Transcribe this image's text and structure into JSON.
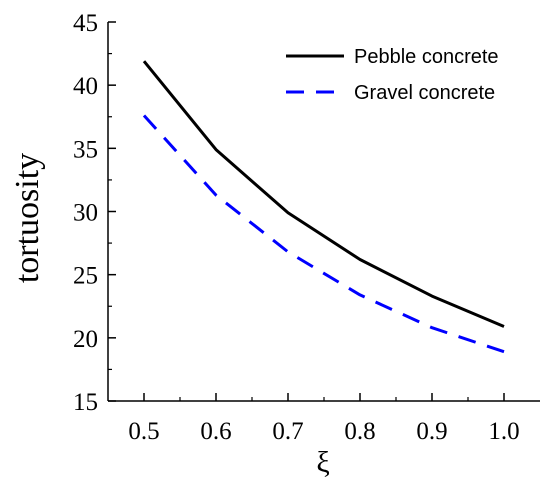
{
  "chart_data": {
    "type": "line",
    "xlabel": "ξ",
    "ylabel": "tortuosity",
    "xlim": [
      0.45,
      1.05
    ],
    "ylim": [
      15,
      45
    ],
    "xticks": [
      "0.5",
      "0.6",
      "0.7",
      "0.8",
      "0.9",
      "1.0"
    ],
    "yticks": [
      "15",
      "20",
      "25",
      "30",
      "35",
      "40",
      "45"
    ],
    "x": [
      0.5,
      0.6,
      0.7,
      0.8,
      0.9,
      1.0
    ],
    "series": [
      {
        "name": "Pebble concrete",
        "values": [
          41.9,
          34.9,
          29.9,
          26.2,
          23.3,
          20.9
        ],
        "color": "#000000",
        "style": "solid"
      },
      {
        "name": "Gravel concrete",
        "values": [
          37.6,
          31.3,
          26.8,
          23.4,
          20.8,
          18.9
        ],
        "color": "#0000ff",
        "style": "dashed"
      }
    ],
    "legend": "top-right",
    "grid": false
  }
}
